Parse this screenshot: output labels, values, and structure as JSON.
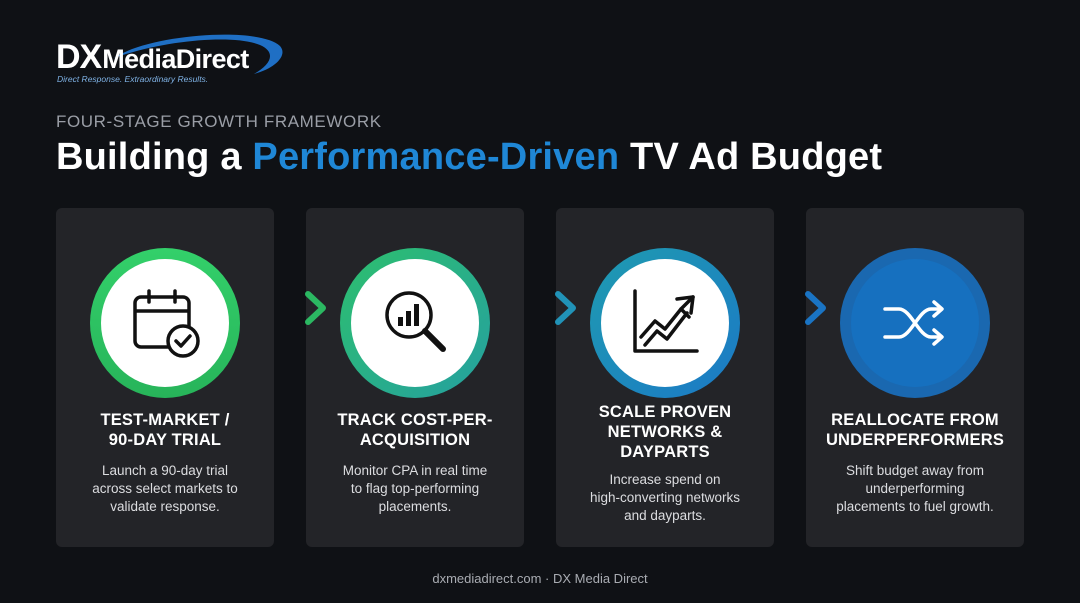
{
  "brand": {
    "logo_dx": "DX",
    "logo_name": "MediaDirect",
    "tagline": "Direct Response. Extraordinary Results."
  },
  "header": {
    "eyebrow": "FOUR-STAGE GROWTH FRAMEWORK",
    "title_before": "Building a ",
    "title_accent": "Performance-Driven",
    "title_after": " TV Ad Budget"
  },
  "steps": [
    {
      "icon": "calendar-check-icon",
      "title_lines": [
        "TEST-MARKET /",
        "90-DAY TRIAL"
      ],
      "desc_lines": [
        "Launch a 90-day trial",
        "across select markets to",
        "validate response."
      ]
    },
    {
      "icon": "magnifier-chart-icon",
      "title_lines": [
        "TRACK COST-PER-",
        "ACQUISITION"
      ],
      "desc_lines": [
        "Monitor CPA in real time",
        "to flag top-performing",
        "placements."
      ]
    },
    {
      "icon": "trend-chart-icon",
      "title_lines": [
        "SCALE PROVEN",
        "NETWORKS &",
        "DAYPARTS"
      ],
      "desc_lines": [
        "Increase spend on",
        "high-converting networks",
        "and dayparts."
      ]
    },
    {
      "icon": "shuffle-icon",
      "title_lines": [
        "REALLOCATE FROM",
        "UNDERPERFORMERS"
      ],
      "desc_lines": [
        "Shift budget away from",
        "underperforming",
        "placements to fuel growth."
      ]
    }
  ],
  "colors": {
    "background": "#0f1115",
    "card": "#232428",
    "accent_blue": "#1f87d6",
    "green": "#2ec866",
    "blue_dark": "#1670bf"
  },
  "footer": {
    "text": "dxmediadirect.com · DX Media Direct"
  }
}
